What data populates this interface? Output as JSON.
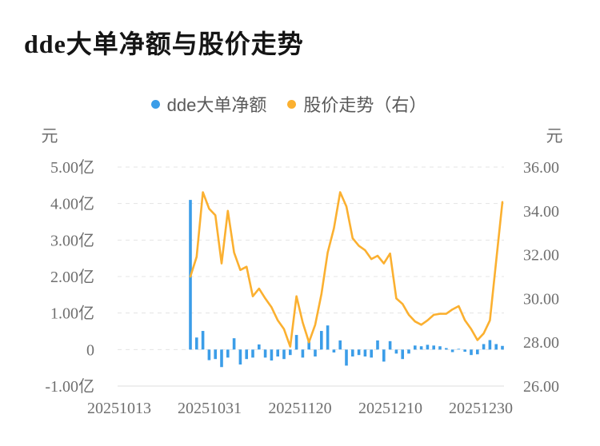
{
  "title": "dde大单净额与股价走势",
  "legend": {
    "items": [
      {
        "label": "dde大单净额",
        "color": "#3B9DE8"
      },
      {
        "label": "股价走势（右）",
        "color": "#FBB030"
      }
    ]
  },
  "chart_data": {
    "type": "combo-bar-line",
    "title": "dde大单净额与股价走势",
    "legend_position": "top-center",
    "grid": "horizontal-dashed",
    "x_tick_labels": [
      "20251013",
      "20251031",
      "20251120",
      "20251210",
      "20251230"
    ],
    "x_points_count": 51,
    "left_axis": {
      "unit": "元",
      "tick_labels": [
        "5.00亿",
        "4.00亿",
        "3.00亿",
        "2.00亿",
        "1.00亿",
        "0",
        "-1.00亿"
      ],
      "tick_values": [
        5,
        4,
        3,
        2,
        1,
        0,
        -1
      ],
      "value_scale": "亿"
    },
    "right_axis": {
      "unit": "元",
      "tick_labels": [
        "36.00",
        "34.00",
        "32.00",
        "30.00",
        "28.00",
        "26.00"
      ],
      "tick_values": [
        36,
        34,
        32,
        30,
        28,
        26
      ]
    },
    "series": [
      {
        "name": "dde大单净额",
        "type": "bar",
        "axis": "left",
        "unit": "亿元",
        "color": "#3B9DE8",
        "values": [
          4.1,
          0.33,
          0.51,
          -0.29,
          -0.26,
          -0.48,
          -0.22,
          0.31,
          -0.41,
          -0.26,
          -0.22,
          0.14,
          -0.22,
          -0.3,
          -0.19,
          -0.26,
          -0.15,
          0.4,
          -0.22,
          0.25,
          -0.19,
          0.51,
          0.66,
          -0.08,
          0.25,
          -0.44,
          -0.19,
          -0.15,
          -0.19,
          -0.22,
          0.25,
          -0.33,
          0.23,
          -0.11,
          -0.26,
          -0.11,
          0.11,
          0.09,
          0.13,
          0.11,
          0.09,
          0.04,
          -0.07,
          0.02,
          -0.06,
          -0.15,
          -0.13,
          0.15,
          0.26,
          0.15,
          0.1
        ]
      },
      {
        "name": "股价走势（右）",
        "type": "line",
        "axis": "right",
        "unit": "元",
        "color": "#FBB030",
        "values": [
          31.0,
          31.9,
          34.85,
          34.1,
          33.8,
          31.6,
          34.0,
          32.1,
          31.3,
          31.45,
          30.1,
          30.45,
          30.0,
          29.6,
          29.0,
          28.6,
          27.8,
          30.1,
          28.9,
          28.0,
          28.8,
          30.2,
          32.1,
          33.2,
          34.85,
          34.2,
          32.75,
          32.4,
          32.2,
          31.8,
          31.95,
          31.6,
          32.05,
          30.0,
          29.75,
          29.25,
          28.95,
          28.8,
          29.0,
          29.25,
          29.3,
          29.3,
          29.5,
          29.65,
          29.0,
          28.6,
          28.1,
          28.4,
          29.0,
          31.7,
          34.4
        ]
      }
    ]
  }
}
